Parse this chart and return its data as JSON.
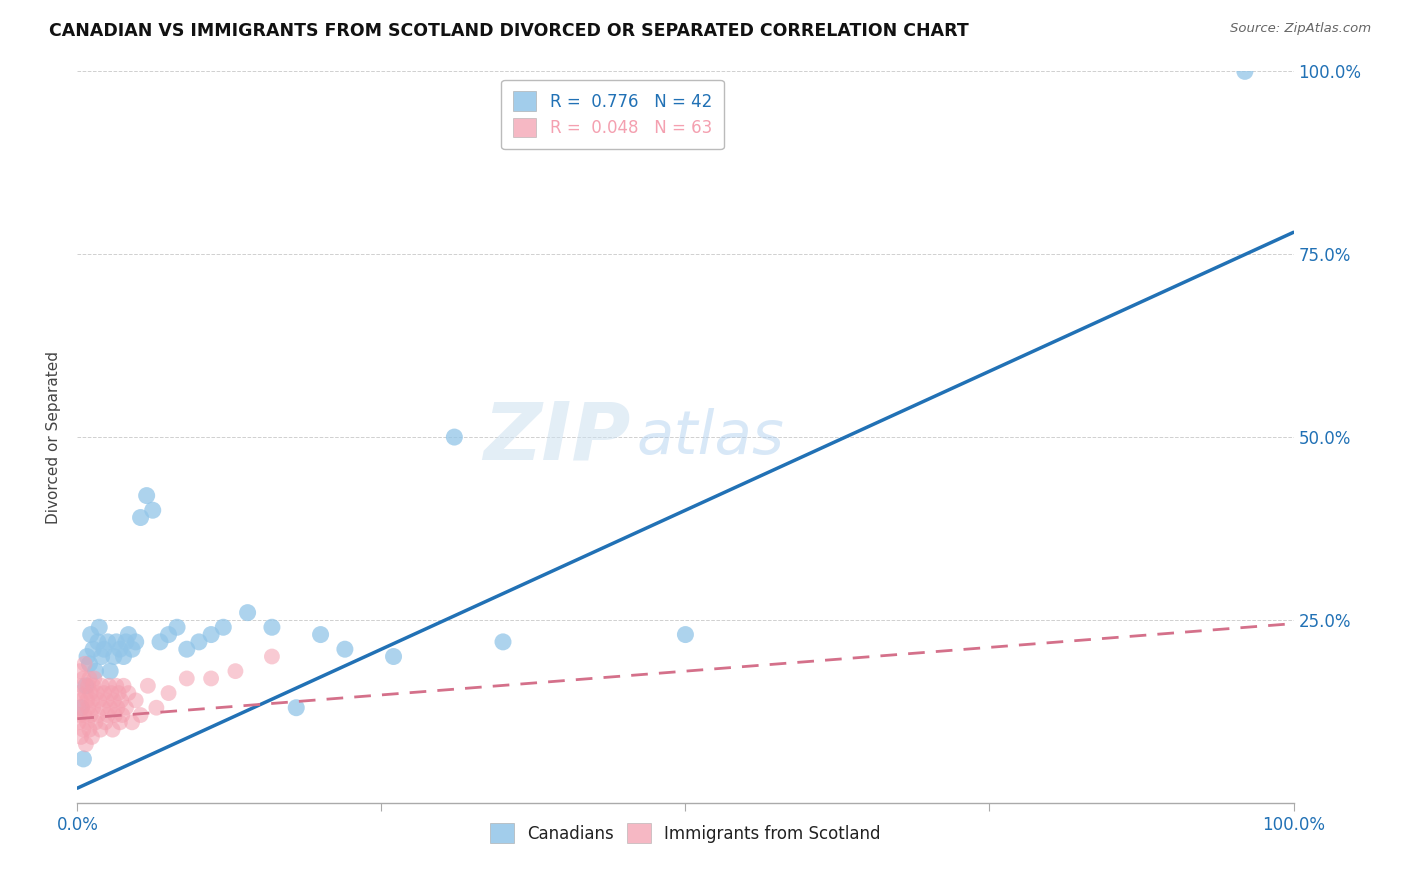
{
  "title": "CANADIAN VS IMMIGRANTS FROM SCOTLAND DIVORCED OR SEPARATED CORRELATION CHART",
  "source": "Source: ZipAtlas.com",
  "ylabel": "Divorced or Separated",
  "xlim": [
    0.0,
    1.0
  ],
  "ylim": [
    0.0,
    1.0
  ],
  "xtick_positions": [
    0.0,
    0.25,
    0.5,
    0.75,
    1.0
  ],
  "xtick_labels_sparse": [
    "0.0%",
    "",
    "",
    "",
    "100.0%"
  ],
  "ytick_positions": [
    0.0,
    0.25,
    0.5,
    0.75,
    1.0
  ],
  "right_ytick_labels": [
    "",
    "25.0%",
    "50.0%",
    "75.0%",
    "100.0%"
  ],
  "legend_blue_text": "R =  0.776   N = 42",
  "legend_pink_text": "R =  0.048   N = 63",
  "canadians_label": "Canadians",
  "immigrants_label": "Immigrants from Scotland",
  "blue_dot_color": "#92c5e8",
  "pink_dot_color": "#f4a0b0",
  "blue_line_color": "#2171b5",
  "pink_line_color": "#d4708a",
  "watermark_zip": "ZIP",
  "watermark_atlas": "atlas",
  "background_color": "#ffffff",
  "grid_color": "#d0d0d0",
  "canadians_x": [
    0.003,
    0.005,
    0.007,
    0.008,
    0.01,
    0.011,
    0.013,
    0.015,
    0.017,
    0.018,
    0.02,
    0.022,
    0.025,
    0.027,
    0.03,
    0.032,
    0.035,
    0.038,
    0.04,
    0.042,
    0.045,
    0.048,
    0.052,
    0.057,
    0.062,
    0.068,
    0.075,
    0.082,
    0.09,
    0.1,
    0.11,
    0.12,
    0.14,
    0.16,
    0.18,
    0.2,
    0.22,
    0.26,
    0.31,
    0.35,
    0.5,
    0.96
  ],
  "canadians_y": [
    0.13,
    0.06,
    0.16,
    0.2,
    0.19,
    0.23,
    0.21,
    0.18,
    0.22,
    0.24,
    0.2,
    0.21,
    0.22,
    0.18,
    0.2,
    0.22,
    0.21,
    0.2,
    0.22,
    0.23,
    0.21,
    0.22,
    0.39,
    0.42,
    0.4,
    0.22,
    0.23,
    0.24,
    0.21,
    0.22,
    0.23,
    0.24,
    0.26,
    0.24,
    0.13,
    0.23,
    0.21,
    0.2,
    0.5,
    0.22,
    0.23,
    1.0
  ],
  "immigrants_x": [
    0.001,
    0.001,
    0.002,
    0.002,
    0.003,
    0.003,
    0.004,
    0.004,
    0.005,
    0.005,
    0.006,
    0.006,
    0.007,
    0.007,
    0.008,
    0.008,
    0.009,
    0.009,
    0.01,
    0.01,
    0.011,
    0.011,
    0.012,
    0.012,
    0.013,
    0.013,
    0.014,
    0.015,
    0.016,
    0.017,
    0.018,
    0.019,
    0.02,
    0.021,
    0.022,
    0.023,
    0.024,
    0.025,
    0.026,
    0.027,
    0.028,
    0.029,
    0.03,
    0.031,
    0.032,
    0.033,
    0.034,
    0.035,
    0.036,
    0.037,
    0.038,
    0.04,
    0.042,
    0.045,
    0.048,
    0.052,
    0.058,
    0.065,
    0.075,
    0.09,
    0.11,
    0.13,
    0.16
  ],
  "immigrants_y": [
    0.15,
    0.11,
    0.18,
    0.12,
    0.14,
    0.09,
    0.16,
    0.13,
    0.17,
    0.1,
    0.19,
    0.12,
    0.15,
    0.08,
    0.14,
    0.11,
    0.16,
    0.13,
    0.17,
    0.1,
    0.15,
    0.12,
    0.14,
    0.09,
    0.16,
    0.13,
    0.17,
    0.11,
    0.15,
    0.12,
    0.14,
    0.1,
    0.16,
    0.13,
    0.15,
    0.11,
    0.14,
    0.12,
    0.16,
    0.13,
    0.15,
    0.1,
    0.14,
    0.12,
    0.16,
    0.13,
    0.15,
    0.11,
    0.14,
    0.12,
    0.16,
    0.13,
    0.15,
    0.11,
    0.14,
    0.12,
    0.16,
    0.13,
    0.15,
    0.17,
    0.17,
    0.18,
    0.2
  ],
  "blue_line_x": [
    0.0,
    1.0
  ],
  "blue_line_y": [
    0.02,
    0.78
  ],
  "pink_line_x": [
    0.0,
    1.0
  ],
  "pink_line_y": [
    0.115,
    0.245
  ]
}
